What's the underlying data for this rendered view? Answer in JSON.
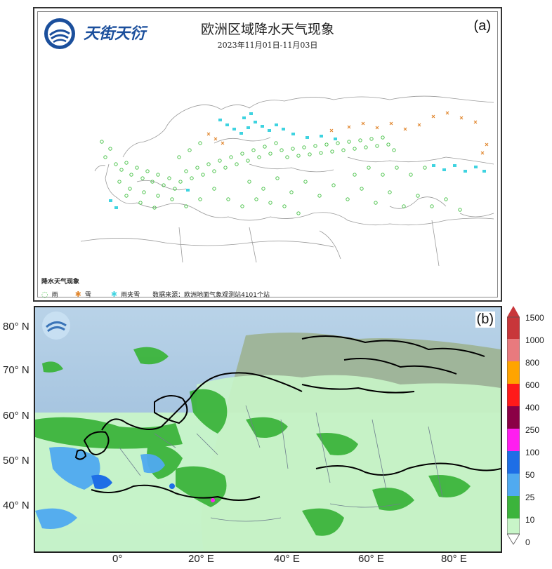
{
  "panel_a": {
    "brand": "天街天衍",
    "title": "欧洲区域降水天气现象",
    "subtitle": "2023年11月01日-11月03日",
    "label": "(a)",
    "legend": {
      "title": "降水天气现象",
      "items": [
        {
          "symbol": "◌",
          "label": "雨",
          "color": "#3fbf3f"
        },
        {
          "symbol": "✱",
          "label": "雪",
          "color": "#e0842a"
        },
        {
          "symbol": "✱",
          "label": "雨夹雪",
          "color": "#3fd3e0"
        }
      ],
      "source": "数据来源：欧洲地面气象观测站4101个站"
    }
  },
  "panel_b": {
    "label": "(b)",
    "lat_labels": [
      "80° N",
      "70° N",
      "60° N",
      "50° N",
      "40° N"
    ],
    "lon_labels": [
      "0°",
      "20° E",
      "40° E",
      "60° E",
      "80° E"
    ],
    "colorbar": {
      "levels": [
        "1500",
        "1000",
        "800",
        "600",
        "400",
        "250",
        "100",
        "50",
        "25",
        "10",
        "0"
      ],
      "colors": [
        "#c8363a",
        "#e87a7e",
        "#f08c8c",
        "#ffa400",
        "#ff1a1a",
        "#8b0046",
        "#ff1ef0",
        "#1e6ee6",
        "#50aaf0",
        "#3cb43c",
        "#c8f5c8"
      ]
    }
  }
}
